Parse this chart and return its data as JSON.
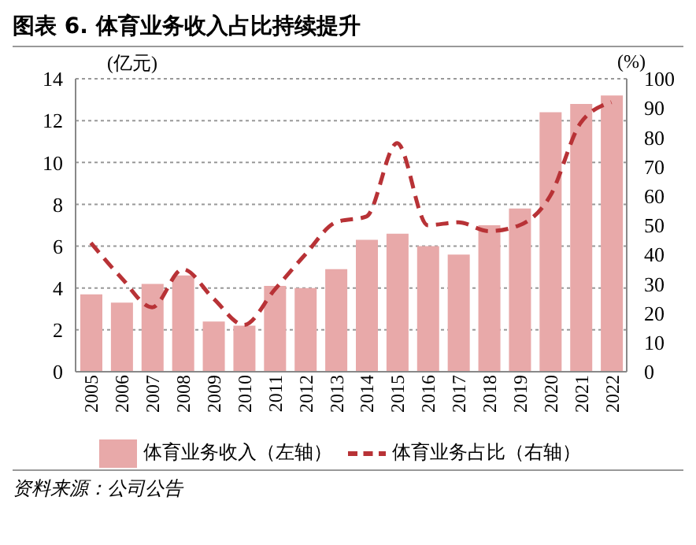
{
  "chart_data": {
    "type": "bar",
    "title": "图表 6. 体育业务收入占比持续提升",
    "ylabel": "(亿元)",
    "y2label": "(%)",
    "categories": [
      "2005",
      "2006",
      "2007",
      "2008",
      "2009",
      "2010",
      "2011",
      "2012",
      "2013",
      "2014",
      "2015",
      "2016",
      "2017",
      "2018",
      "2019",
      "2020",
      "2021",
      "2022"
    ],
    "series": [
      {
        "name": "体育业务收入（左轴）",
        "color": "#e8a9a9",
        "values": [
          3.7,
          3.3,
          4.2,
          4.6,
          2.4,
          2.2,
          4.1,
          4.0,
          4.9,
          6.3,
          6.6,
          6.0,
          5.6,
          7.0,
          7.8,
          12.4,
          12.8,
          13.2
        ]
      },
      {
        "name": "体育业务占比（右轴）",
        "type": "line",
        "axis": "y2",
        "color": "#b83236",
        "line_style": "dashed",
        "values": [
          44,
          32,
          22,
          35,
          25,
          16,
          28,
          40,
          51,
          53,
          78,
          50,
          51,
          48,
          50,
          60,
          85,
          92
        ]
      }
    ],
    "ylim": [
      0,
      14
    ],
    "yticks": [
      0,
      2,
      4,
      6,
      8,
      10,
      12,
      14
    ],
    "y2lim": [
      0,
      100
    ],
    "y2ticks": [
      0,
      10,
      20,
      30,
      40,
      50,
      60,
      70,
      80,
      90,
      100
    ],
    "grid": "y",
    "legend": "bottom",
    "marker": "none",
    "annotations": [
      "资料来源：公司公告"
    ]
  }
}
